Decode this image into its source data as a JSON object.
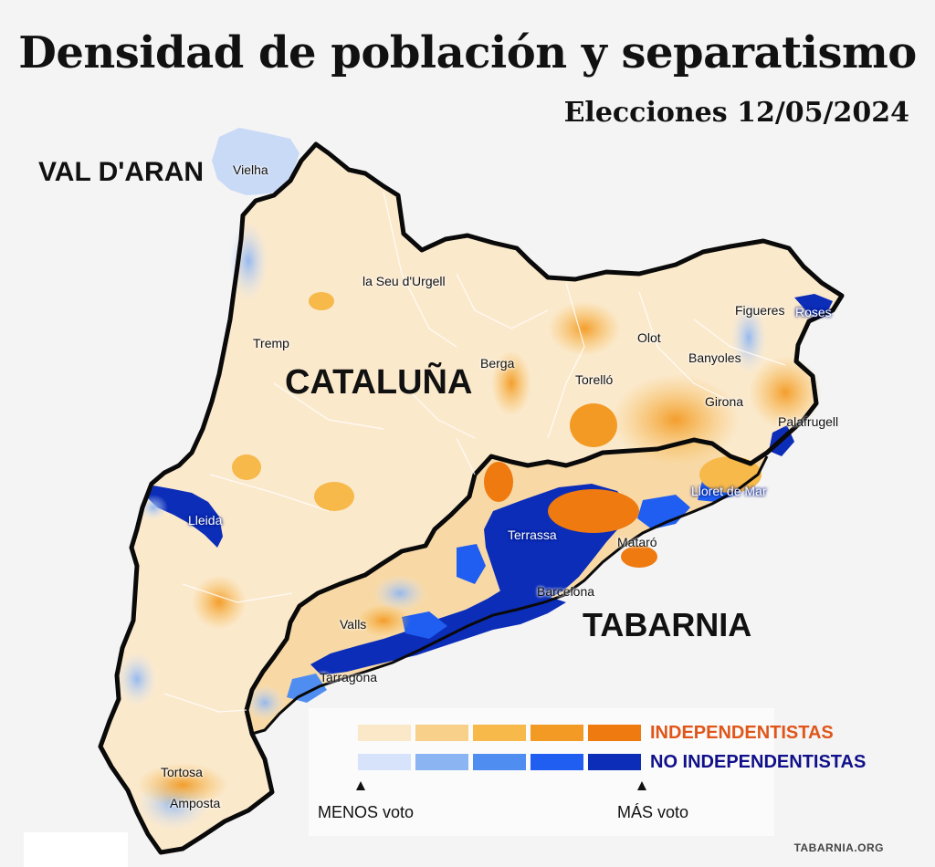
{
  "title": "Densidad de población y separatismo",
  "subtitle": "Elecciones 12/05/2024",
  "regions": {
    "val_daran": "VAL D'ARAN",
    "cataluna": "CATALUÑA",
    "tabarnia": "TABARNIA"
  },
  "cities": {
    "vielha": "Vielha",
    "seu_urgell": "la Seu d'Urgell",
    "tremp": "Tremp",
    "berga": "Berga",
    "olot": "Olot",
    "figueres": "Figueres",
    "roses": "Roses",
    "banyoles": "Banyoles",
    "torello": "Torelló",
    "girona": "Girona",
    "palafrugell": "Palafrugell",
    "lleida": "Lleida",
    "lloret": "Lloret de Mar",
    "terrassa": "Terrassa",
    "mataro": "Mataró",
    "barcelona": "Barcelona",
    "valls": "Valls",
    "tarragona": "Tarragona",
    "tortosa": "Tortosa",
    "amposta": "Amposta"
  },
  "legend": {
    "independentistas": "INDEPENDENTISTAS",
    "no_independentistas": "NO INDEPENDENTISTAS",
    "menos": "MENOS voto",
    "mas": "MÁS voto",
    "orange_scale": [
      "#fbe8c8",
      "#f8d08a",
      "#f6b94a",
      "#f39a24",
      "#ee7a10"
    ],
    "blue_scale": [
      "#d6e3fa",
      "#8bb4f2",
      "#4f8ef0",
      "#1f5ef0",
      "#0c2db8"
    ],
    "independentistas_color": "#e0561a",
    "no_independentistas_color": "#10108a"
  },
  "credit": "TABARNIA.ORG"
}
